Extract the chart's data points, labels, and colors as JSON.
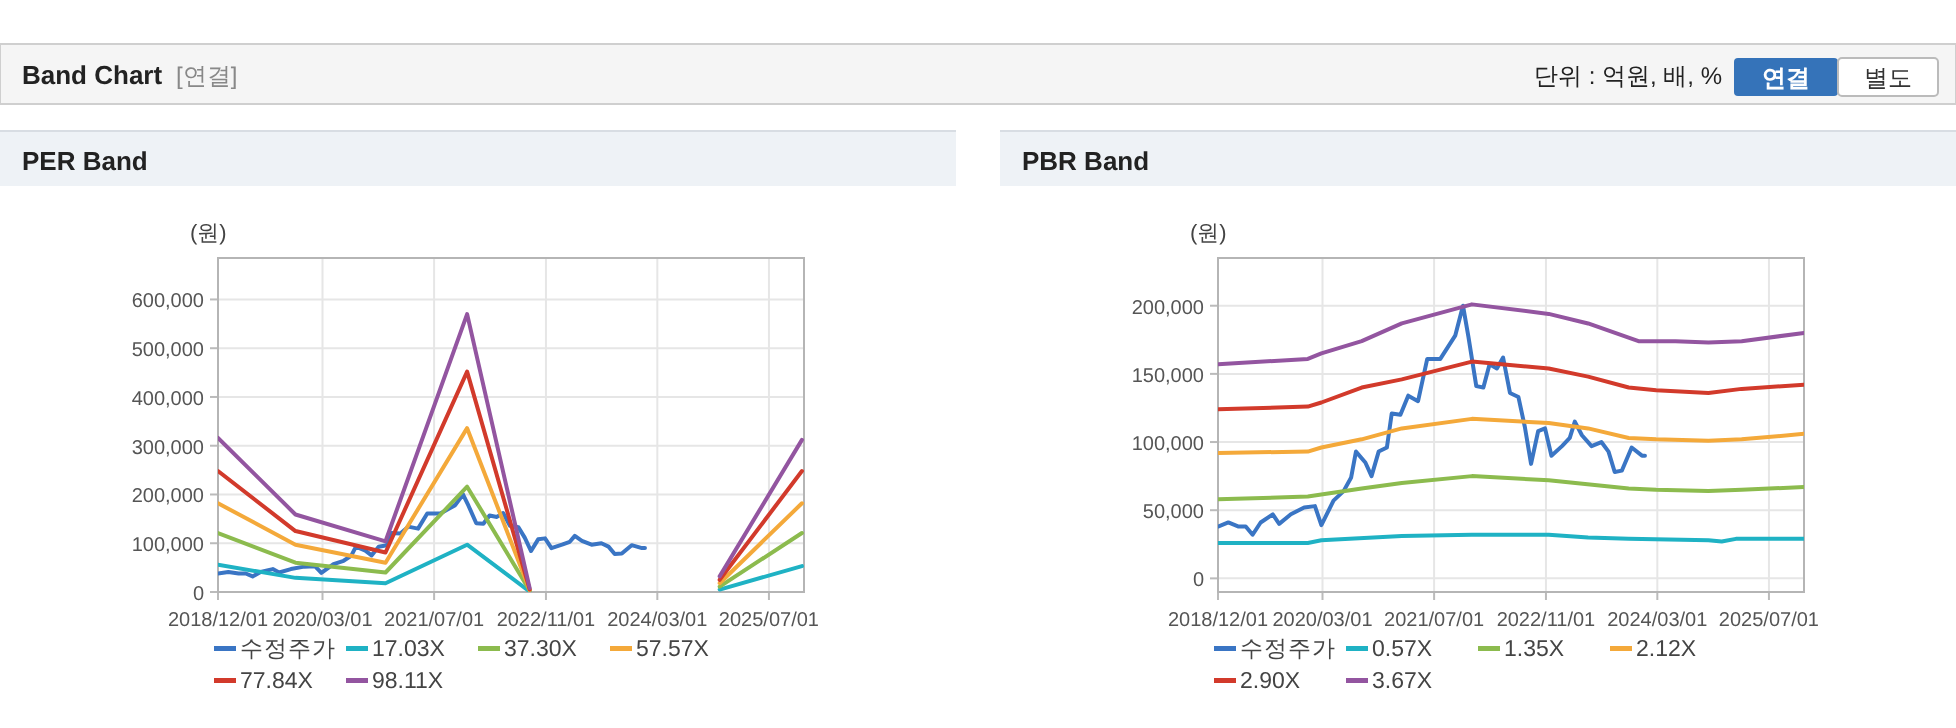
{
  "chart_data": [
    {
      "type": "other",
      "title": "Band Chart",
      "subtitle": "[연결]",
      "annotations": [
        "단위 : 억원, 배, %",
        "연결",
        "별도"
      ]
    },
    {
      "type": "line",
      "title": "PER Band",
      "ylabel": "(원)",
      "xlim": [
        "2018-12-01",
        "2025-12-01"
      ],
      "ylim": [
        0,
        685000
      ],
      "xticks": [
        {
          "value": "2018-12-01",
          "label": "2018/12/01"
        },
        {
          "value": "2020-03-01",
          "label": "2020/03/01"
        },
        {
          "value": "2021-07-01",
          "label": "2021/07/01"
        },
        {
          "value": "2022-11-01",
          "label": "2022/11/01"
        },
        {
          "value": "2024-03-01",
          "label": "2024/03/01"
        },
        {
          "value": "2025-07-01",
          "label": "2025/07/01"
        }
      ],
      "yticks": [
        0,
        {
          "value": 100000,
          "label": "100,000"
        },
        {
          "value": 200000,
          "label": "200,000"
        },
        {
          "value": 300000,
          "label": "300,000"
        },
        {
          "value": 400000,
          "label": "400,000"
        },
        {
          "value": 500000,
          "label": "500,000"
        },
        {
          "value": 600000,
          "label": "600,000"
        }
      ],
      "grid": true,
      "legend": "bottom",
      "series": [
        {
          "name": "수정주가",
          "color": "#3a75c4",
          "x": [
            "2018-12-01",
            "2019-01-15",
            "2019-03-01",
            "2019-04-01",
            "2019-05-01",
            "2019-06-05",
            "2019-07-28",
            "2019-08-25",
            "2019-10-15",
            "2019-12-12",
            "2020-01-28",
            "2020-02-25",
            "2020-04-18",
            "2020-06-01",
            "2020-07-04",
            "2020-07-25",
            "2020-09-04",
            "2020-10-01",
            "2020-11-01",
            "2020-12-07",
            "2020-12-28",
            "2021-02-04",
            "2021-03-10",
            "2021-04-22",
            "2021-06-01",
            "2021-07-28",
            "2021-10-01",
            "2021-11-04",
            "2021-11-28",
            "2022-01-01",
            "2022-02-01",
            "2022-02-28",
            "2022-04-01",
            "2022-04-28",
            "2022-05-28",
            "2022-07-04",
            "2022-08-01",
            "2022-08-28",
            "2022-09-28",
            "2022-10-28",
            "2022-11-25",
            "2023-01-10",
            "2023-02-13",
            "2023-03-07",
            "2023-04-07",
            "2023-05-19",
            "2023-07-01",
            "2023-08-01",
            "2023-08-28",
            "2023-09-28",
            "2023-11-10",
            "2023-12-25",
            "2024-01-07"
          ],
          "values": [
            38000,
            41000,
            38000,
            38000,
            32000,
            41000,
            47000,
            40000,
            47000,
            52000,
            53000,
            39000,
            57000,
            64000,
            74000,
            93000,
            85000,
            75000,
            93000,
            96000,
            121000,
            120000,
            134000,
            130000,
            161000,
            161000,
            178000,
            200000,
            177000,
            141000,
            140000,
            157000,
            154000,
            162000,
            136000,
            133000,
            111000,
            84000,
            108000,
            110000,
            90000,
            97000,
            103000,
            115000,
            105000,
            97000,
            100000,
            93000,
            78000,
            79000,
            96000,
            90000,
            90000
          ]
        },
        {
          "name": "17.03X",
          "color": "#1fb2c4",
          "x": [
            "2018-12-01",
            "2019-11-04",
            "2020-12-01",
            "2021-11-22",
            "2022-08-22",
            "2023-12-01",
            "2024-11-28",
            "2025-11-22"
          ],
          "values": [
            56000,
            29000,
            18000,
            97000,
            1000,
            null,
            5000,
            53000
          ]
        },
        {
          "name": "37.30X",
          "color": "#8cbb4e",
          "x": [
            "2018-12-01",
            "2019-11-04",
            "2020-12-01",
            "2021-11-22",
            "2022-08-22",
            "2023-12-01",
            "2024-11-28",
            "2025-11-22"
          ],
          "values": [
            121000,
            60000,
            40000,
            216000,
            3000,
            null,
            11000,
            121000
          ]
        },
        {
          "name": "57.57X",
          "color": "#f4a93a",
          "x": [
            "2018-12-01",
            "2019-11-04",
            "2020-12-01",
            "2021-11-22",
            "2022-08-22",
            "2023-12-01",
            "2024-11-28",
            "2025-11-22"
          ],
          "values": [
            182000,
            97000,
            60000,
            336000,
            4000,
            null,
            18000,
            182000
          ]
        },
        {
          "name": "77.84X",
          "color": "#d23a2b",
          "x": [
            "2018-12-01",
            "2019-11-04",
            "2020-12-01",
            "2021-11-22",
            "2022-08-22",
            "2023-12-01",
            "2024-11-28",
            "2025-11-22"
          ],
          "values": [
            248000,
            125000,
            81000,
            452000,
            5000,
            null,
            25000,
            248000
          ]
        },
        {
          "name": "98.11X",
          "color": "#9355a0",
          "x": [
            "2018-12-01",
            "2019-11-04",
            "2020-12-01",
            "2021-11-22",
            "2022-08-22",
            "2023-12-01",
            "2024-11-28",
            "2025-11-22"
          ],
          "values": [
            316000,
            159000,
            104000,
            570000,
            8000,
            null,
            32000,
            312000
          ]
        }
      ]
    },
    {
      "type": "line",
      "title": "PBR Band",
      "ylabel": "(원)",
      "xlim": [
        "2018-12-01",
        "2025-12-01"
      ],
      "ylim": [
        -10000,
        235000
      ],
      "xticks": [
        {
          "value": "2018-12-01",
          "label": "2018/12/01"
        },
        {
          "value": "2020-03-01",
          "label": "2020/03/01"
        },
        {
          "value": "2021-07-01",
          "label": "2021/07/01"
        },
        {
          "value": "2022-11-01",
          "label": "2022/11/01"
        },
        {
          "value": "2024-03-01",
          "label": "2024/03/01"
        },
        {
          "value": "2025-07-01",
          "label": "2025/07/01"
        }
      ],
      "yticks": [
        0,
        {
          "value": 50000,
          "label": "50,000"
        },
        {
          "value": 100000,
          "label": "100,000"
        },
        {
          "value": 150000,
          "label": "150,000"
        },
        {
          "value": 200000,
          "label": "200,000"
        }
      ],
      "grid": true,
      "legend": "bottom",
      "series": [
        {
          "name": "수정주가",
          "color": "#3a75c4",
          "x": [
            "2018-12-01",
            "2019-01-15",
            "2019-03-01",
            "2019-04-01",
            "2019-05-01",
            "2019-06-05",
            "2019-07-28",
            "2019-08-25",
            "2019-10-15",
            "2019-12-12",
            "2020-01-28",
            "2020-02-25",
            "2020-04-18",
            "2020-06-01",
            "2020-07-04",
            "2020-07-25",
            "2020-09-04",
            "2020-10-01",
            "2020-11-01",
            "2020-12-07",
            "2020-12-28",
            "2021-02-04",
            "2021-03-10",
            "2021-04-22",
            "2021-06-01",
            "2021-07-28",
            "2021-10-01",
            "2021-11-04",
            "2021-11-28",
            "2022-01-01",
            "2022-02-01",
            "2022-02-28",
            "2022-04-01",
            "2022-04-28",
            "2022-05-28",
            "2022-07-04",
            "2022-08-01",
            "2022-08-28",
            "2022-09-28",
            "2022-10-28",
            "2022-11-25",
            "2023-01-10",
            "2023-02-13",
            "2023-03-07",
            "2023-04-07",
            "2023-05-19",
            "2023-07-01",
            "2023-08-01",
            "2023-08-28",
            "2023-09-28",
            "2023-11-10",
            "2023-12-25",
            "2024-01-07"
          ],
          "values": [
            38000,
            41000,
            38000,
            38000,
            32000,
            41000,
            47000,
            40000,
            47000,
            52000,
            53000,
            39000,
            57000,
            64000,
            74000,
            93000,
            85000,
            75000,
            93000,
            96000,
            121000,
            120000,
            134000,
            130000,
            161000,
            161000,
            178000,
            200000,
            177000,
            141000,
            140000,
            157000,
            154000,
            162000,
            136000,
            133000,
            111000,
            84000,
            108000,
            110000,
            90000,
            97000,
            103000,
            115000,
            105000,
            97000,
            100000,
            93000,
            78000,
            79000,
            96000,
            90000,
            90000
          ]
        },
        {
          "name": "0.57X",
          "color": "#1fb2c4",
          "x": [
            "2018-12-01",
            "2019-12-28",
            "2020-02-25",
            "2021-02-10",
            "2021-12-13",
            "2022-11-13",
            "2023-05-04",
            "2023-10-28",
            "2024-10-10",
            "2024-12-07",
            "2025-02-07",
            "2025-12-01"
          ],
          "values": [
            26000,
            26000,
            28000,
            31000,
            32000,
            32000,
            30000,
            29000,
            28000,
            27000,
            29000,
            29000
          ]
        },
        {
          "name": "1.35X",
          "color": "#8cbb4e",
          "x": [
            "2018-12-01",
            "2019-12-28",
            "2020-08-19",
            "2021-02-10",
            "2021-12-13",
            "2022-11-13",
            "2023-10-28",
            "2024-02-25",
            "2024-10-10",
            "2025-03-04",
            "2025-12-01"
          ],
          "values": [
            58000,
            60000,
            66000,
            70000,
            75000,
            72000,
            66000,
            65000,
            64000,
            65000,
            67000
          ]
        },
        {
          "name": "2.12X",
          "color": "#f4a93a",
          "x": [
            "2018-12-01",
            "2019-12-28",
            "2020-02-25",
            "2020-08-19",
            "2021-02-10",
            "2021-12-13",
            "2022-11-13",
            "2023-05-04",
            "2023-10-28",
            "2024-02-25",
            "2024-10-10",
            "2025-03-04",
            "2025-12-01"
          ],
          "values": [
            92000,
            93000,
            96000,
            102000,
            110000,
            117000,
            114000,
            110000,
            103000,
            102000,
            101000,
            102000,
            106000
          ]
        },
        {
          "name": "2.90X",
          "color": "#d23a2b",
          "x": [
            "2018-12-01",
            "2019-12-28",
            "2020-02-25",
            "2020-08-19",
            "2021-02-10",
            "2021-12-13",
            "2022-11-13",
            "2023-05-04",
            "2023-10-28",
            "2024-02-25",
            "2024-10-10",
            "2025-03-04",
            "2025-12-01"
          ],
          "values": [
            124000,
            126000,
            129000,
            140000,
            146000,
            159000,
            154000,
            148000,
            140000,
            138000,
            136000,
            139000,
            142000
          ]
        },
        {
          "name": "3.67X",
          "color": "#9355a0",
          "x": [
            "2018-12-01",
            "2019-12-28",
            "2020-02-25",
            "2020-08-19",
            "2021-02-10",
            "2021-12-13",
            "2022-11-13",
            "2023-05-04",
            "2023-12-10",
            "2024-05-19",
            "2024-10-10",
            "2025-03-04",
            "2025-12-01"
          ],
          "values": [
            157000,
            161000,
            165000,
            174000,
            187000,
            201000,
            194000,
            187000,
            174000,
            174000,
            173000,
            174000,
            180000
          ]
        }
      ]
    }
  ]
}
